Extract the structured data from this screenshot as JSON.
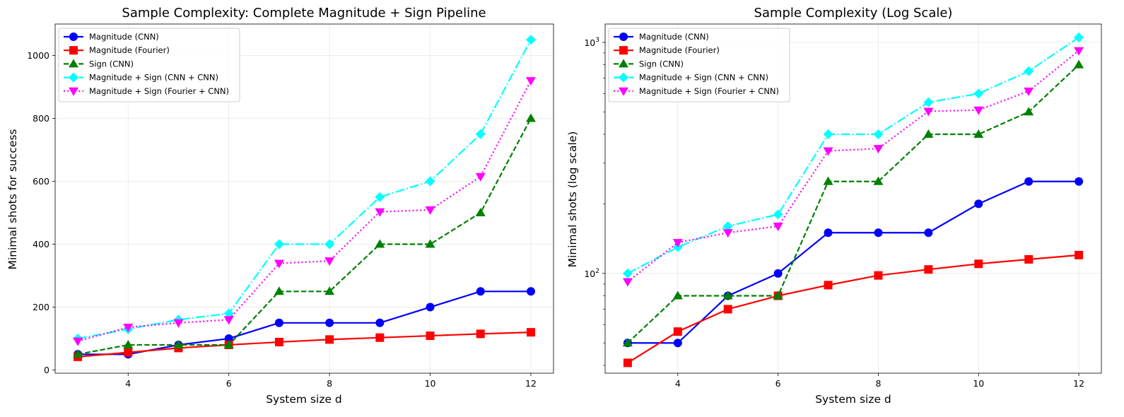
{
  "chart_data": [
    {
      "type": "line",
      "title": "Sample Complexity: Complete Magnitude + Sign Pipeline",
      "xlabel": "System size d",
      "ylabel": "Minimal shots for success",
      "yscale": "linear",
      "xlim": [
        2.55,
        12.45
      ],
      "ylim": [
        -10,
        1100
      ],
      "xticks": [
        4,
        6,
        8,
        10,
        12
      ],
      "yticks": [
        0,
        200,
        400,
        600,
        800,
        1000
      ],
      "grid": true,
      "legend": "upper-left",
      "x": [
        3,
        4,
        5,
        6,
        7,
        8,
        9,
        10,
        11,
        12
      ],
      "series": [
        {
          "name": "Magnitude (CNN)",
          "color": "#0000ff",
          "marker": "circle",
          "linestyle": "solid",
          "values": [
            50,
            50,
            80,
            100,
            150,
            150,
            150,
            200,
            250,
            250
          ]
        },
        {
          "name": "Magnitude (Fourier)",
          "color": "#ff0000",
          "marker": "square",
          "linestyle": "solid",
          "values": [
            42,
            56,
            70,
            80,
            89,
            97,
            103,
            109,
            115,
            120
          ]
        },
        {
          "name": "Sign (CNN)",
          "color": "#008000",
          "marker": "triangle-up",
          "linestyle": "dashed",
          "values": [
            50,
            80,
            80,
            80,
            250,
            250,
            400,
            400,
            500,
            800
          ]
        },
        {
          "name": "Magnitude + Sign (CNN + CNN)",
          "color": "#00ffff",
          "marker": "diamond",
          "linestyle": "dashdot",
          "values": [
            100,
            130,
            160,
            180,
            400,
            400,
            550,
            600,
            750,
            1050
          ]
        },
        {
          "name": "Magnitude + Sign (Fourier + CNN)",
          "color": "#ff00ff",
          "marker": "triangle-down",
          "linestyle": "dotted",
          "values": [
            92,
            136,
            150,
            160,
            339,
            347,
            503,
            509,
            615,
            920
          ]
        }
      ]
    },
    {
      "type": "line",
      "title": "Sample Complexity (Log Scale)",
      "xlabel": "System size d",
      "ylabel": "Minimal shots (log scale)",
      "yscale": "log",
      "xlim": [
        2.55,
        12.45
      ],
      "ylim": [
        37,
        1200
      ],
      "xticks": [
        4,
        6,
        8,
        10,
        12
      ],
      "yticks": [
        100,
        1000
      ],
      "ytick_labels": [
        [
          "10",
          "2"
        ],
        [
          "10",
          "3"
        ]
      ],
      "grid": true,
      "legend": "upper-left",
      "x": [
        3,
        4,
        5,
        6,
        7,
        8,
        9,
        10,
        11,
        12
      ],
      "series": [
        {
          "name": "Magnitude (CNN)",
          "color": "#0000ff",
          "marker": "circle",
          "linestyle": "solid",
          "values": [
            50,
            50,
            80,
            100,
            150,
            150,
            150,
            200,
            250,
            250
          ]
        },
        {
          "name": "Magnitude (Fourier)",
          "color": "#ff0000",
          "marker": "square",
          "linestyle": "solid",
          "values": [
            41,
            56,
            70,
            80,
            89,
            98,
            104,
            110,
            115,
            120
          ]
        },
        {
          "name": "Sign (CNN)",
          "color": "#008000",
          "marker": "triangle-up",
          "linestyle": "dashed",
          "values": [
            50,
            80,
            80,
            80,
            250,
            250,
            400,
            400,
            500,
            800
          ]
        },
        {
          "name": "Magnitude + Sign (CNN + CNN)",
          "color": "#00ffff",
          "marker": "diamond",
          "linestyle": "dashdot",
          "values": [
            100,
            130,
            160,
            180,
            400,
            400,
            550,
            600,
            750,
            1050
          ]
        },
        {
          "name": "Magnitude + Sign (Fourier + CNN)",
          "color": "#ff00ff",
          "marker": "triangle-down",
          "linestyle": "dotted",
          "values": [
            92,
            136,
            150,
            160,
            339,
            347,
            503,
            509,
            615,
            920
          ]
        }
      ]
    }
  ]
}
